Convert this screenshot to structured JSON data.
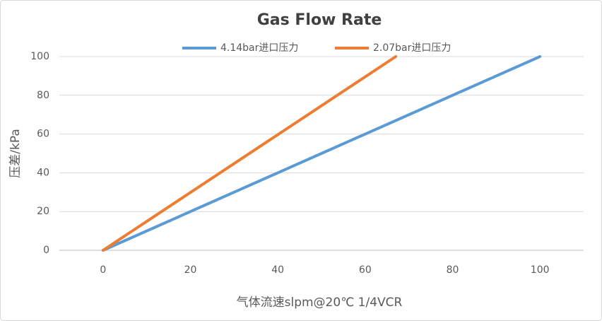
{
  "chart_data": {
    "type": "line",
    "title": "Gas Flow Rate",
    "x_label": "气体流速slpm@20℃ 1/4VCR",
    "y_label": "压差/kPa",
    "series": [
      {
        "name": "4.14bar进口压力",
        "color": "#5b9bd5",
        "x": [
          0,
          100
        ],
        "values": [
          0,
          100
        ]
      },
      {
        "name": "2.07bar进口压力",
        "color": "#ed7d31",
        "x": [
          0,
          67
        ],
        "values": [
          0,
          100
        ]
      }
    ],
    "xlim": [
      -10,
      110
    ],
    "xticks": [
      0,
      20,
      40,
      60,
      80,
      100
    ],
    "ylim": [
      0,
      100
    ],
    "yticks": [
      0,
      20,
      40,
      60,
      80,
      100
    ],
    "grid": true,
    "legend": "top"
  }
}
